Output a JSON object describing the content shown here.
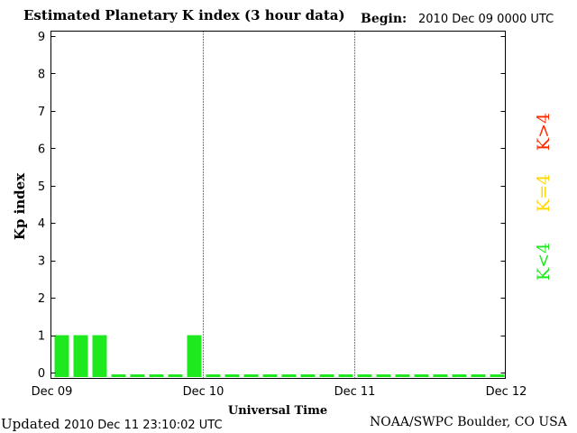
{
  "header": {
    "title": "Estimated Planetary K index (3 hour data)",
    "begin_label": "Begin:",
    "begin_value": "2010 Dec 09 0000 UTC"
  },
  "footer": {
    "updated_label": "Updated",
    "updated_value": "2010 Dec 11 23:10:02 UTC",
    "source": "NOAA/SWPC Boulder, CO USA"
  },
  "legend": {
    "high": {
      "label": "K>4",
      "color": "#ff2a00"
    },
    "equal": {
      "label": "K=4",
      "color": "#ffd700"
    },
    "low": {
      "label": "K<4",
      "color": "#1ee81e"
    }
  },
  "chart_data": {
    "type": "bar",
    "title": "Estimated Planetary K index (3 hour data)",
    "xlabel": "Universal Time",
    "ylabel": "Kp index",
    "ylim": [
      0,
      9
    ],
    "yticks": [
      "0",
      "1",
      "2",
      "3",
      "4",
      "5",
      "6",
      "7",
      "8",
      "9"
    ],
    "xticks": [
      "Dec 09",
      "Dec 10",
      "Dec 11",
      "Dec 12"
    ],
    "interval_hours": 3,
    "total_intervals": 24,
    "values": [
      1,
      1,
      1,
      0,
      0,
      0,
      0,
      1,
      0,
      0,
      0,
      0,
      0,
      0,
      0,
      0,
      0,
      0,
      0,
      0,
      0,
      0,
      0,
      0
    ],
    "bar_color": "#1ee81e",
    "day_separators": "dotted"
  }
}
